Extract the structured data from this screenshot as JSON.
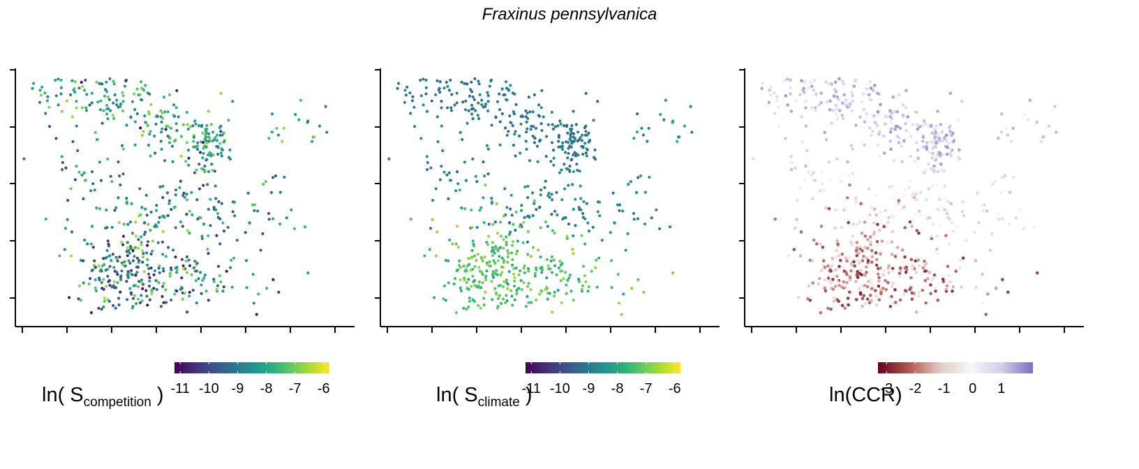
{
  "title": "Fraxinus pennsylvanica",
  "colors": {
    "viridis": [
      "#440154",
      "#472d7b",
      "#3b528b",
      "#2c728e",
      "#21918c",
      "#28ae80",
      "#5ec962",
      "#addc30",
      "#fde725"
    ],
    "ccr_scale": [
      "#67001f",
      "#b2574f",
      "#e3c9c4",
      "#f7f7f7",
      "#cfcde8",
      "#7b6fc3"
    ],
    "axis": "#000000"
  },
  "chart_data": [
    {
      "type": "scatter",
      "panel": "competition",
      "legend": {
        "label_main": "ln( S",
        "label_sub": "competition",
        "label_end": " )",
        "ticks": [
          "-11",
          "-10",
          "-9",
          "-8",
          "-7",
          "-6"
        ],
        "range": [
          -11.2,
          -5.8
        ],
        "colormap": "viridis"
      },
      "tick_labels": [],
      "grid": false
    },
    {
      "type": "scatter",
      "panel": "climate",
      "legend": {
        "label_main": "ln( S",
        "label_sub": "climate",
        "label_end": " )",
        "ticks": [
          "-11",
          "-10",
          "-9",
          "-8",
          "-7",
          "-6"
        ],
        "range": [
          -11.2,
          -5.8
        ],
        "colormap": "viridis"
      },
      "tick_labels": [],
      "grid": false
    },
    {
      "type": "scatter",
      "panel": "ccr",
      "legend": {
        "label_main": "ln(CCR)",
        "label_sub": "",
        "label_end": "",
        "ticks": [
          "-3",
          "-2",
          "-1",
          "0",
          "1"
        ],
        "range": [
          -3.3,
          2.1
        ],
        "colormap": "ccr_scale"
      },
      "tick_labels": [],
      "grid": false
    }
  ]
}
